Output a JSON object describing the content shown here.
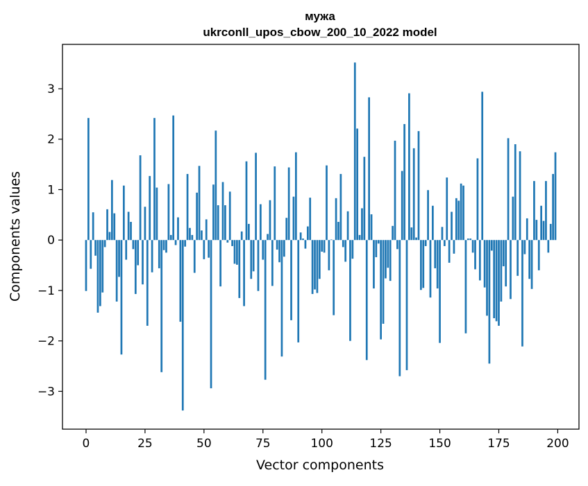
{
  "chart_data": {
    "type": "bar",
    "title": "мужа",
    "subtitle": "ukrconll_upos_cbow_200_10_2022 model",
    "xlabel": "Vector components",
    "ylabel": "Components values",
    "xlim": [
      -10,
      209
    ],
    "ylim": [
      -3.75,
      3.88
    ],
    "xticks": [
      0,
      25,
      50,
      75,
      100,
      125,
      150,
      175,
      200
    ],
    "xtick_labels": [
      "0",
      "25",
      "50",
      "75",
      "100",
      "125",
      "150",
      "175",
      "200"
    ],
    "yticks": [
      -3,
      -2,
      -1,
      0,
      1,
      2,
      3
    ],
    "ytick_labels": [
      "−3",
      "−2",
      "−1",
      "0",
      "1",
      "2",
      "3"
    ],
    "grid": false,
    "legend": "none",
    "bar_color": "#1f77b4",
    "x": [
      0,
      1,
      2,
      3,
      4,
      5,
      6,
      7,
      8,
      9,
      10,
      11,
      12,
      13,
      14,
      15,
      16,
      17,
      18,
      19,
      20,
      21,
      22,
      23,
      24,
      25,
      26,
      27,
      28,
      29,
      30,
      31,
      32,
      33,
      34,
      35,
      36,
      37,
      38,
      39,
      40,
      41,
      42,
      43,
      44,
      45,
      46,
      47,
      48,
      49,
      50,
      51,
      52,
      53,
      54,
      55,
      56,
      57,
      58,
      59,
      60,
      61,
      62,
      63,
      64,
      65,
      66,
      67,
      68,
      69,
      70,
      71,
      72,
      73,
      74,
      75,
      76,
      77,
      78,
      79,
      80,
      81,
      82,
      83,
      84,
      85,
      86,
      87,
      88,
      89,
      90,
      91,
      92,
      93,
      94,
      95,
      96,
      97,
      98,
      99,
      100,
      101,
      102,
      103,
      104,
      105,
      106,
      107,
      108,
      109,
      110,
      111,
      112,
      113,
      114,
      115,
      116,
      117,
      118,
      119,
      120,
      121,
      122,
      123,
      124,
      125,
      126,
      127,
      128,
      129,
      130,
      131,
      132,
      133,
      134,
      135,
      136,
      137,
      138,
      139,
      140,
      141,
      142,
      143,
      144,
      145,
      146,
      147,
      148,
      149,
      150,
      151,
      152,
      153,
      154,
      155,
      156,
      157,
      158,
      159,
      160,
      161,
      162,
      163,
      164,
      165,
      166,
      167,
      168,
      169,
      170,
      171,
      172,
      173,
      174,
      175,
      176,
      177,
      178,
      179,
      180,
      181,
      182,
      183,
      184,
      185,
      186,
      187,
      188,
      189,
      190,
      191,
      192,
      193,
      194,
      195,
      196,
      197,
      198,
      199
    ],
    "values": [
      -1.01,
      2.42,
      -0.57,
      0.55,
      -0.31,
      -1.44,
      -1.31,
      -1.04,
      -0.14,
      0.61,
      0.16,
      1.19,
      0.53,
      -1.22,
      -0.73,
      -2.27,
      1.08,
      -0.39,
      0.56,
      0.36,
      -0.18,
      -1.07,
      -0.5,
      1.68,
      -0.88,
      0.66,
      -1.7,
      1.27,
      -0.64,
      2.42,
      1.04,
      -0.56,
      -2.62,
      -0.2,
      -0.25,
      1.11,
      0.1,
      2.47,
      -0.1,
      0.45,
      -1.62,
      -3.38,
      -0.13,
      1.31,
      0.24,
      0.1,
      -0.65,
      0.94,
      1.47,
      0.19,
      -0.38,
      0.41,
      -0.35,
      -2.94,
      1.1,
      2.17,
      0.69,
      -0.92,
      1.15,
      0.69,
      -0.05,
      0.96,
      -0.12,
      -0.47,
      -0.49,
      -1.15,
      0.17,
      -1.31,
      1.56,
      0.32,
      -0.77,
      -0.62,
      1.73,
      -1.01,
      0.71,
      -0.39,
      -2.77,
      0.12,
      0.79,
      -0.91,
      1.46,
      -0.19,
      -0.44,
      -2.31,
      -0.33,
      0.44,
      1.44,
      -1.59,
      0.86,
      1.74,
      -2.03,
      0.15,
      0.03,
      -0.17,
      0.27,
      0.84,
      -1.07,
      -0.98,
      -1.05,
      -0.77,
      -0.23,
      -0.25,
      1.48,
      -0.6,
      0.01,
      -1.49,
      0.83,
      0.36,
      1.31,
      -0.14,
      -0.43,
      0.57,
      -2.0,
      -0.37,
      3.52,
      2.21,
      0.1,
      0.63,
      1.65,
      -2.38,
      2.83,
      0.51,
      -0.96,
      -0.34,
      -0.07,
      -1.97,
      -1.66,
      -0.76,
      -0.55,
      -0.81,
      0.28,
      1.97,
      -0.18,
      -2.7,
      1.37,
      2.3,
      -2.58,
      2.91,
      0.25,
      1.82,
      0.05,
      2.16,
      -0.99,
      -0.95,
      -0.12,
      0.99,
      -1.14,
      0.68,
      -0.56,
      -0.96,
      -2.04,
      0.26,
      -0.12,
      1.24,
      -0.45,
      0.56,
      -0.27,
      0.83,
      0.78,
      1.12,
      1.08,
      -1.85,
      0.03,
      0.03,
      -0.25,
      -0.58,
      1.62,
      -0.8,
      2.94,
      -0.94,
      -1.5,
      -2.45,
      -0.21,
      -1.55,
      -1.61,
      -1.7,
      -1.22,
      -0.52,
      -0.92,
      2.02,
      -1.17,
      0.86,
      1.9,
      -0.71,
      1.76,
      -2.11,
      -0.28,
      0.43,
      -0.77,
      -0.97,
      1.17,
      0.4,
      -0.6,
      0.68,
      0.38,
      1.17,
      -0.25,
      0.32,
      1.31,
      1.74
    ]
  }
}
